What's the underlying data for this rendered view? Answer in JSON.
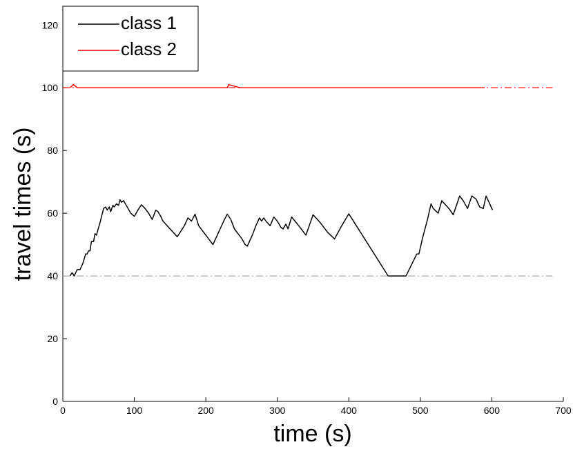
{
  "chart_data": {
    "type": "line",
    "xlabel": "time (s)",
    "ylabel": "travel times (s)",
    "xlim": [
      0,
      700
    ],
    "ylim": [
      0,
      126
    ],
    "xticks": [
      0,
      100,
      200,
      300,
      400,
      500,
      600,
      700
    ],
    "yticks": [
      0,
      20,
      40,
      60,
      80,
      100,
      120
    ],
    "legend": "upper left",
    "series": [
      {
        "name": "class 1",
        "color": "#000000",
        "x": [
          10,
          13,
          16,
          20,
          24,
          28,
          32,
          34,
          36,
          38,
          40,
          43,
          45,
          47,
          52,
          57,
          60,
          62,
          65,
          67,
          70,
          72,
          75,
          78,
          80,
          82,
          85,
          90,
          95,
          100,
          105,
          110,
          115,
          120,
          125,
          130,
          133,
          137,
          140,
          150,
          160,
          170,
          175,
          180,
          185,
          190,
          200,
          205,
          210,
          220,
          225,
          230,
          235,
          240,
          250,
          255,
          258,
          265,
          270,
          275,
          278,
          281,
          284,
          290,
          295,
          300,
          305,
          308,
          312,
          315,
          320,
          330,
          340,
          350,
          360,
          370,
          380,
          390,
          400,
          455,
          475,
          480,
          495,
          498,
          503,
          510,
          515,
          518,
          525,
          530,
          540,
          546,
          555,
          560,
          566,
          572,
          578,
          583,
          588,
          592,
          596,
          601
        ],
        "values": [
          40,
          41,
          40,
          42,
          42,
          44,
          47,
          47,
          48,
          48,
          51,
          51,
          53.5,
          53,
          57,
          61.5,
          62,
          61,
          62,
          60.5,
          62.5,
          62,
          63,
          62.5,
          64.3,
          63.5,
          64,
          62,
          60,
          59,
          61,
          62.7,
          61.5,
          60,
          58,
          61,
          60.5,
          59,
          57.5,
          55,
          52.5,
          56,
          58.5,
          57.5,
          59.7,
          56,
          53,
          51.5,
          50,
          55,
          57.5,
          59.7,
          58,
          55,
          52,
          50,
          49.5,
          53,
          56,
          58.5,
          57.5,
          58.5,
          57.5,
          56,
          58.8,
          57.5,
          55.5,
          55,
          56.5,
          55,
          58.8,
          56,
          53,
          59.5,
          57,
          54,
          51.8,
          56,
          59.8,
          40,
          40,
          40,
          47,
          47,
          52,
          58,
          63,
          61.5,
          60,
          64,
          61.5,
          59.5,
          65.5,
          64,
          61.5,
          65.5,
          64.5,
          62,
          61.5,
          65.5,
          63.5,
          61
        ]
      },
      {
        "name": "class 2",
        "color": "#ff0000",
        "x": [
          10,
          15,
          20,
          230,
          232,
          248,
          590
        ],
        "values": [
          100,
          101,
          100,
          100,
          101,
          100,
          100
        ]
      }
    ],
    "reference_lines": [
      {
        "value": 40,
        "xlim": [
          0,
          685
        ],
        "color": "#aaaaaa"
      },
      {
        "value": 100,
        "xlim": [
          0,
          685
        ],
        "color": "#ff0000"
      }
    ]
  }
}
